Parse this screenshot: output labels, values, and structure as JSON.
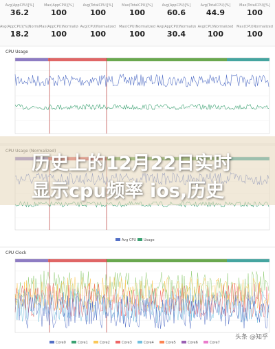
{
  "stats": [
    [
      {
        "label": "Avg(AppCPU)[%]",
        "value": "36.2"
      },
      {
        "label": "Max(AppCPU)[%]",
        "value": "100"
      },
      {
        "label": "Avg(TotalCPU)[%]",
        "value": "100"
      },
      {
        "label": "Max(TotalCPU)[%]",
        "value": "100"
      },
      {
        "label": "Avg(AppCPU)[%]",
        "value": "60.6"
      },
      {
        "label": "Avg(TotalCPU)[%]",
        "value": "44.9"
      },
      {
        "label": "Max(TotalCPU)[%]",
        "value": "100"
      }
    ],
    [
      {
        "label": "Avg(AppCPU)[%]Normalized",
        "value": "18.2"
      },
      {
        "label": "Max(AppCPU)Normalized",
        "value": "100"
      },
      {
        "label": "Avg(CPU)Normalized",
        "value": "100"
      },
      {
        "label": "Max(CPU)Normalized",
        "value": "100"
      },
      {
        "label": "Avg(AppCPU)Normalized",
        "value": "30.4"
      },
      {
        "label": "Avg(CPU)Normalized",
        "value": "100"
      },
      {
        "label": "Max(CPU)Normalized",
        "value": "100"
      }
    ]
  ],
  "panels": [
    {
      "title": "CPU Usage"
    },
    {
      "title": "CPU Usage (Normalized)",
      "legend": [
        "Avg CPU",
        "Usage"
      ]
    },
    {
      "title": "CPU Clock",
      "legend": [
        "Core0",
        "Core1",
        "Core2",
        "Core3",
        "Core4",
        "Core5",
        "Core6",
        "Core7"
      ]
    }
  ],
  "overlay": {
    "lines": [
      "历史上的12月22日实时",
      "显示cpu频率 ios,历史"
    ]
  },
  "watermark": "头条 @知乎"
}
